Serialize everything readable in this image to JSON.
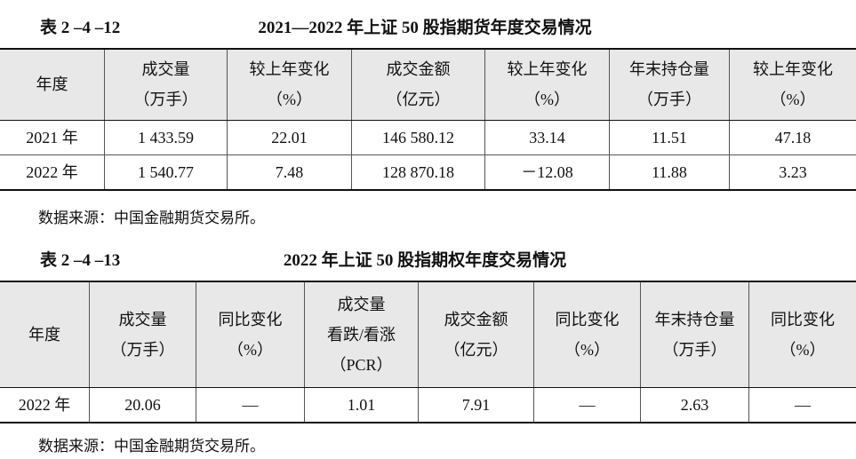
{
  "tables": [
    {
      "label": "表 2 –4 –12",
      "title": "2021—2022 年上证 50 股指期货年度交易情况",
      "header": [
        [
          "年度"
        ],
        [
          "成交量",
          "（万手）"
        ],
        [
          "较上年变化",
          "（%）"
        ],
        [
          "成交金额",
          "（亿元）"
        ],
        [
          "较上年变化",
          "（%）"
        ],
        [
          "年末持仓量",
          "（万手）"
        ],
        [
          "较上年变化",
          "（%）"
        ]
      ],
      "rows": [
        [
          "2021 年",
          "1 433.59",
          "22.01",
          "146 580.12",
          "33.14",
          "11.51",
          "47.18"
        ],
        [
          "2022 年",
          "1 540.77",
          "7.48",
          "128 870.18",
          "－12.08",
          "11.88",
          "3.23"
        ]
      ],
      "source": "数据来源：中国金融期货交易所。"
    },
    {
      "label": "表 2 –4 –13",
      "title": "2022 年上证 50 股指期权年度交易情况",
      "header": [
        [
          "年度"
        ],
        [
          "成交量",
          "（万手）"
        ],
        [
          "同比变化",
          "（%）"
        ],
        [
          "成交量",
          "看跌/看涨",
          "（PCR）"
        ],
        [
          "成交金额",
          "（亿元）"
        ],
        [
          "同比变化",
          "（%）"
        ],
        [
          "年末持仓量",
          "（万手）"
        ],
        [
          "同比变化",
          "（%）"
        ]
      ],
      "rows": [
        [
          "2022 年",
          "20.06",
          "—",
          "1.01",
          "7.91",
          "—",
          "2.63",
          "—"
        ]
      ],
      "source": "数据来源：中国金融期货交易所。"
    }
  ]
}
